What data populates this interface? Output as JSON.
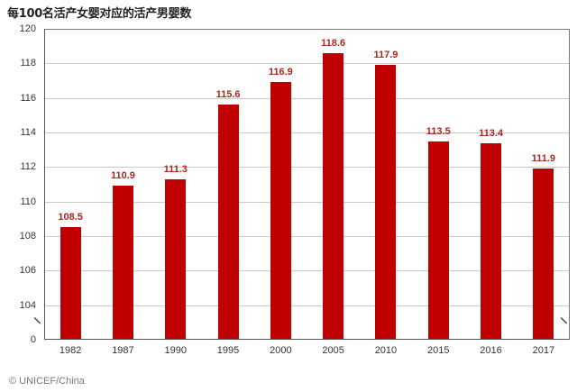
{
  "title": "每100名活产女婴对应的活产男婴数",
  "credit": "© UNICEF/China",
  "colors": {
    "bar": "#c00000",
    "value_label": "#a8281e",
    "grid": "#c8c8c8"
  },
  "yticks": [
    "120",
    "118",
    "116",
    "114",
    "112",
    "110",
    "108",
    "106",
    "104",
    "0"
  ],
  "chart_data": {
    "type": "bar",
    "title": "每100名活产女婴对应的活产男婴数",
    "xlabel": "",
    "ylabel": "",
    "categories": [
      "1982",
      "1987",
      "1990",
      "1995",
      "2000",
      "2005",
      "2010",
      "2015",
      "2016",
      "2017"
    ],
    "values": [
      108.5,
      110.9,
      111.3,
      115.6,
      116.9,
      118.6,
      117.9,
      113.5,
      113.4,
      111.9
    ],
    "value_labels": [
      "108.5",
      "110.9",
      "111.3",
      "115.6",
      "116.9",
      "118.6",
      "117.9",
      "113.5",
      "113.4",
      "111.9"
    ],
    "ylim": [
      0,
      120
    ],
    "axis_break": "between 0 and 104",
    "yticks": [
      0,
      104,
      106,
      108,
      110,
      112,
      114,
      116,
      118,
      120
    ],
    "grid": true,
    "legend": "none"
  }
}
